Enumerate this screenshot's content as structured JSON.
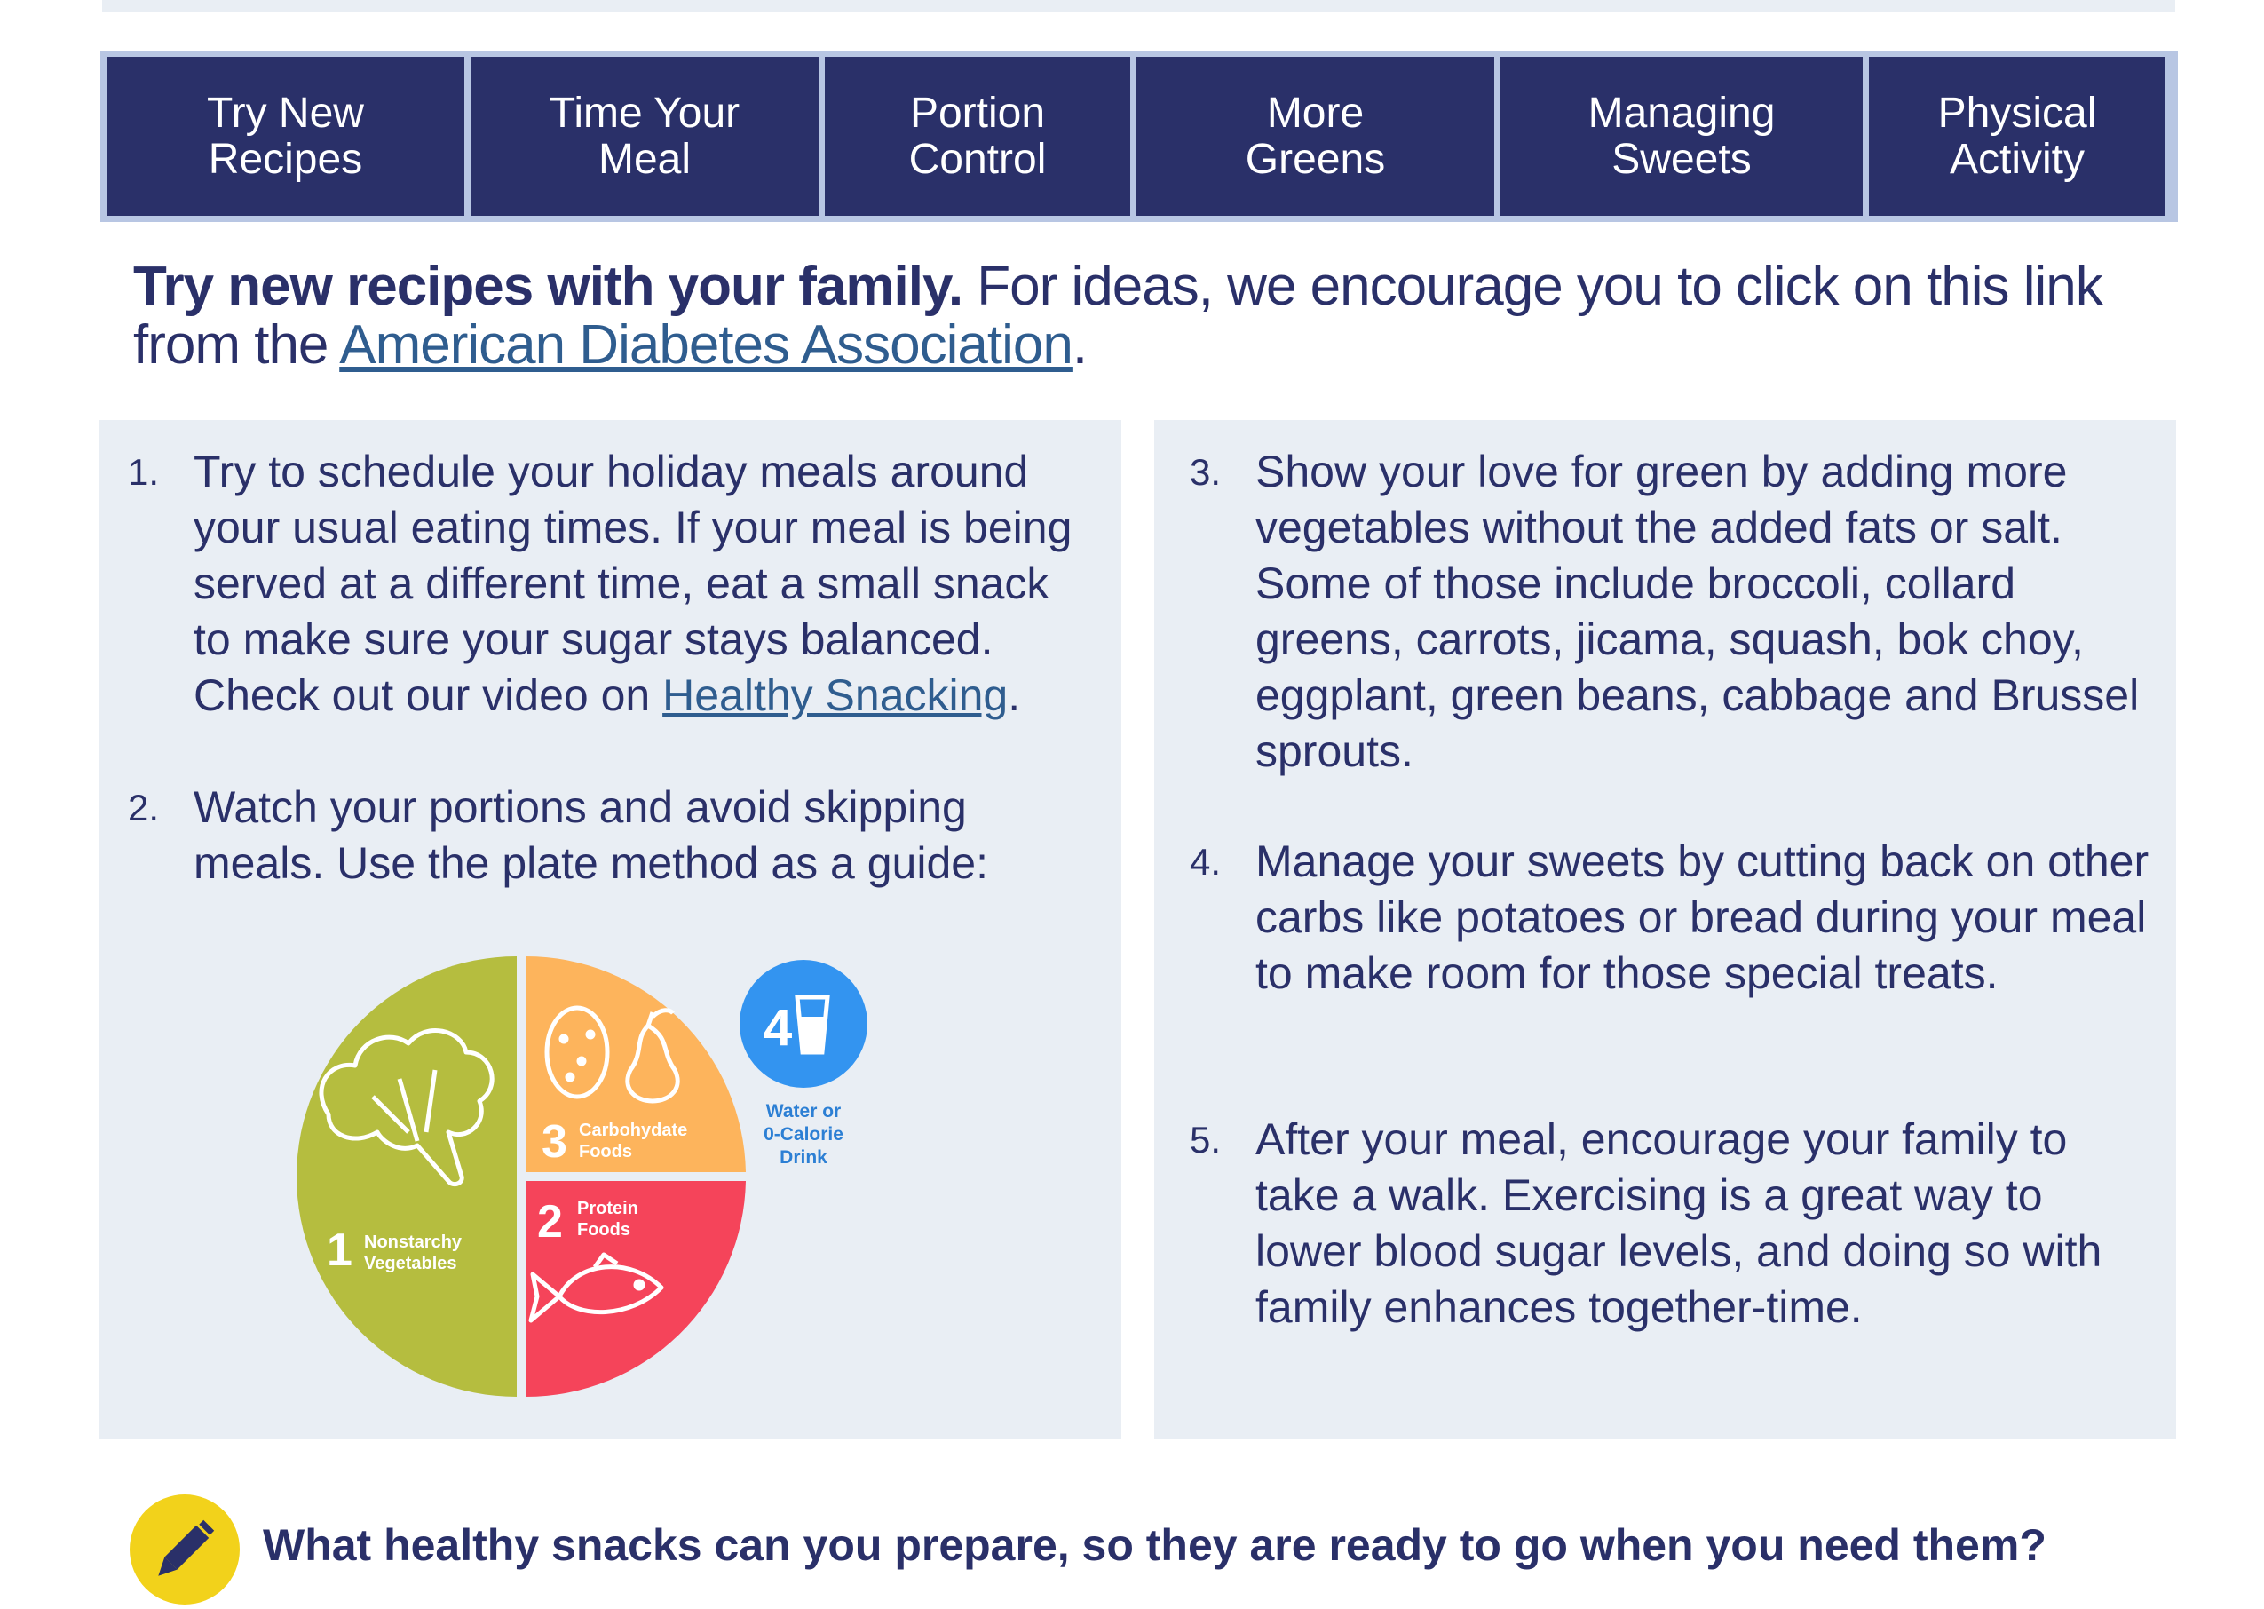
{
  "tabs": [
    {
      "label": "Try New\nRecipes"
    },
    {
      "label": "Time Your\nMeal"
    },
    {
      "label": "Portion\nControl"
    },
    {
      "label": "More\nGreens"
    },
    {
      "label": "Managing\nSweets"
    },
    {
      "label": "Physical\nActivity"
    }
  ],
  "intro": {
    "bold": "Try new recipes with your family.",
    "text": " For ideas, we encourage you to click on this link from the ",
    "link": "American Diabetes Association",
    "end": "."
  },
  "left_items": [
    {
      "num": "1.",
      "text_a": "Try to schedule your holiday meals around your usual eating times. If your meal is being served at a different time, eat a small snack to make sure your sugar stays balanced. Check out our video on ",
      "link": "Healthy Snacking",
      "text_b": "."
    },
    {
      "num": "2.",
      "text": "Watch your portions and avoid skipping meals. Use the plate method as a guide:"
    }
  ],
  "right_items": [
    {
      "num": "3.",
      "text": "Show your love for green by adding more vegetables without the added fats or salt. Some of those include broccoli, collard greens, carrots, jicama, squash, bok choy, eggplant, green beans, cabbage and Brussel sprouts."
    },
    {
      "num": "4.",
      "text": "Manage your sweets by cutting back on other carbs like potatoes or bread during your meal to make room for those special treats."
    },
    {
      "num": "5.",
      "text": "After your meal, encourage your family to take a walk. Exercising is a great way to lower blood sugar levels, and doing so with family enhances together-time."
    }
  ],
  "plate": {
    "veg_num": "1",
    "veg_label_1": "Nonstarchy",
    "veg_label_2": "Vegetables",
    "carb_num": "3",
    "carb_label_1": "Carbohydate",
    "carb_label_2": "Foods",
    "protein_num": "2",
    "protein_label_1": "Protein",
    "protein_label_2": "Foods",
    "drink_num": "4",
    "drink_label_1": "Water or",
    "drink_label_2": "0-Calorie",
    "drink_label_3": "Drink",
    "colors": {
      "veg": "#b5bd3f",
      "carb": "#fdb45c",
      "protein": "#f5445a",
      "drink": "#3394f0"
    }
  },
  "question": "What healthy snacks can you prepare, so they are ready to go when you need them?"
}
